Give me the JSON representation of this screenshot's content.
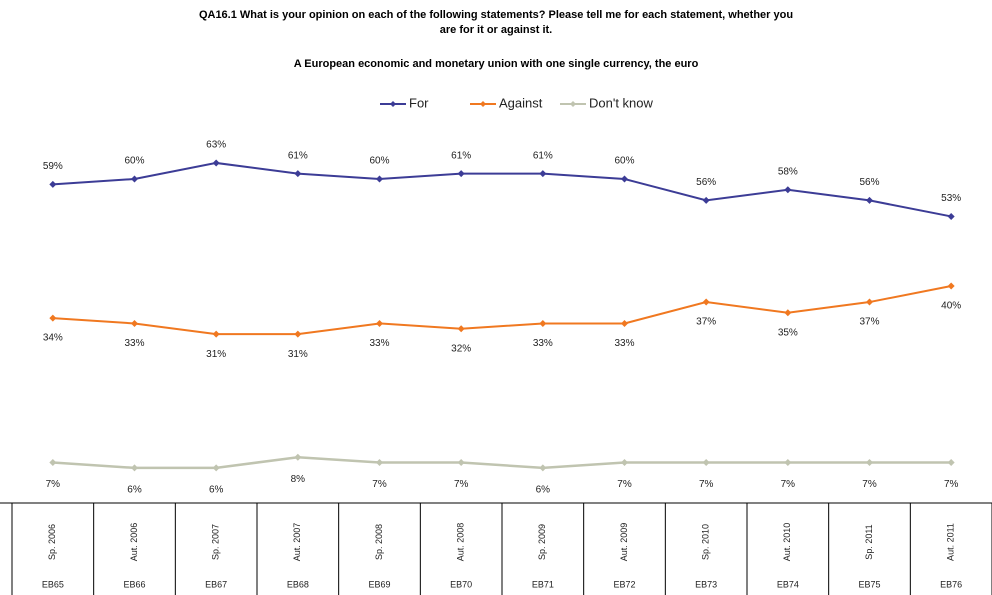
{
  "chart_data": {
    "type": "line",
    "title": "QA16.1 What is your opinion on each of the following statements?  Please tell me for each statement, whether you are for it or against  it.",
    "subtitle": "A European economic and monetary union with one single currency, the euro",
    "categories": [
      "Sp. 2006",
      "Aut. 2006",
      "Sp. 2007",
      "Aut. 2007",
      "Sp. 2008",
      "Aut. 2008",
      "Sp. 2009",
      "Aut. 2009",
      "Sp. 2010",
      "Aut. 2010",
      "Sp. 2011",
      "Aut. 2011"
    ],
    "codes": [
      "EB65",
      "EB66",
      "EB67",
      "EB68",
      "EB69",
      "EB70",
      "EB71",
      "EB72",
      "EB73",
      "EB74",
      "EB75",
      "EB76"
    ],
    "series": [
      {
        "name": "For",
        "color": "#3c3c96",
        "values": [
          59,
          60,
          63,
          61,
          60,
          61,
          61,
          60,
          56,
          58,
          56,
          53
        ],
        "value_labels": [
          "59%",
          "60%",
          "63%",
          "61%",
          "60%",
          "61%",
          "61%",
          "60%",
          "56%",
          "58%",
          "56%",
          "53%"
        ]
      },
      {
        "name": "Against",
        "color": "#f07820",
        "values": [
          34,
          33,
          31,
          31,
          33,
          32,
          33,
          33,
          37,
          35,
          37,
          40
        ],
        "value_labels": [
          "34%",
          "33%",
          "31%",
          "31%",
          "33%",
          "32%",
          "33%",
          "33%",
          "37%",
          "35%",
          "37%",
          "40%"
        ]
      },
      {
        "name": "Don't know",
        "color": "#c0c4b0",
        "values": [
          7,
          6,
          6,
          8,
          7,
          7,
          6,
          7,
          7,
          7,
          7,
          7
        ],
        "value_labels": [
          "7%",
          "6%",
          "6%",
          "8%",
          "7%",
          "7%",
          "6%",
          "7%",
          "7%",
          "7%",
          "7%",
          "7%"
        ]
      }
    ]
  }
}
